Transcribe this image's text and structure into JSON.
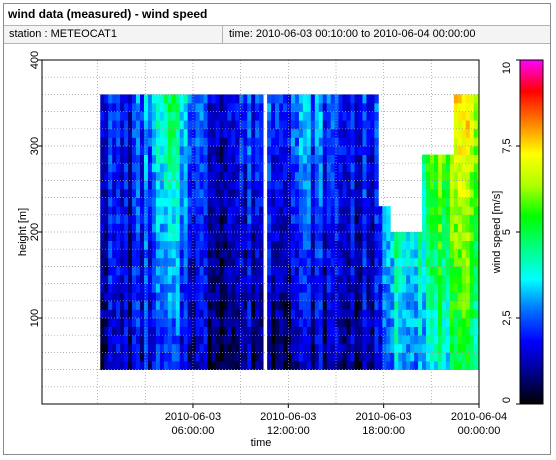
{
  "header": {
    "title": "wind data (measured) - wind speed",
    "station": "station : METEOCAT1",
    "time_range": "time: 2010-06-03 00:10:00 to 2010-06-04 00:00:00"
  },
  "chart_data": {
    "type": "heatmap",
    "title": "wind data (measured) - wind speed",
    "xlabel": "time",
    "ylabel": "height [m]",
    "colorbar_label": "wind speed [m/s]",
    "xlim_hours": [
      -3.5,
      24
    ],
    "ylim": [
      0,
      400
    ],
    "x_ticks": [
      {
        "hour": 6,
        "line1": "2010-06-03",
        "line2": "06:00:00"
      },
      {
        "hour": 12,
        "line1": "2010-06-03",
        "line2": "12:00:00"
      },
      {
        "hour": 18,
        "line1": "2010-06-03",
        "line2": "18:00:00"
      },
      {
        "hour": 24,
        "line1": "2010-06-04",
        "line2": "00:00:00"
      }
    ],
    "y_ticks": [
      100,
      200,
      300,
      400
    ],
    "colorbar_ticks": [
      "10",
      "7,5",
      "5",
      "2,5",
      "0"
    ],
    "colorbar_range": [
      0,
      10
    ],
    "colormap": [
      "#000000",
      "#00008c",
      "#0000ff",
      "#0070ff",
      "#00ffff",
      "#00ff80",
      "#00ff00",
      "#b0ff00",
      "#ffff00",
      "#ff8000",
      "#ff0000",
      "#ff00ff"
    ],
    "grid": true,
    "data_time_range_hours": [
      0.1667,
      24
    ],
    "data_height_range_m": [
      40,
      360
    ],
    "cell_hours": 0.25,
    "cell_height_m": 10,
    "column_tops_m": [
      {
        "from": 0.1,
        "to": 10.4,
        "top": 360
      },
      {
        "from": 10.4,
        "to": 10.6,
        "top": 0
      },
      {
        "from": 10.6,
        "to": 17.6,
        "top": 360
      },
      {
        "from": 17.6,
        "to": 18.3,
        "top": 230
      },
      {
        "from": 18.3,
        "to": 20.5,
        "top": 200
      },
      {
        "from": 20.5,
        "to": 22.5,
        "top": 290
      },
      {
        "from": 22.5,
        "to": 24.0,
        "top": 355
      }
    ],
    "speed_profile": [
      {
        "hour": 0.2,
        "low": 1.2,
        "high": 2.0
      },
      {
        "hour": 2.0,
        "low": 1.3,
        "high": 1.9
      },
      {
        "hour": 3.5,
        "low": 1.6,
        "high": 3.5
      },
      {
        "hour": 4.6,
        "low": 1.8,
        "high": 4.8
      },
      {
        "hour": 5.8,
        "low": 1.4,
        "high": 3.0
      },
      {
        "hour": 7.0,
        "low": 0.9,
        "high": 1.8
      },
      {
        "hour": 8.5,
        "low": 0.7,
        "high": 1.9
      },
      {
        "hour": 10.0,
        "low": 0.9,
        "high": 2.6
      },
      {
        "hour": 11.5,
        "low": 1.0,
        "high": 2.7
      },
      {
        "hour": 13.0,
        "low": 1.1,
        "high": 3.2
      },
      {
        "hour": 14.5,
        "low": 1.1,
        "high": 2.4
      },
      {
        "hour": 16.0,
        "low": 1.0,
        "high": 2.0
      },
      {
        "hour": 17.6,
        "low": 1.1,
        "high": 2.0
      },
      {
        "hour": 18.5,
        "low": 3.4,
        "high": 5.0
      },
      {
        "hour": 20.0,
        "low": 3.3,
        "high": 5.6
      },
      {
        "hour": 21.5,
        "low": 3.8,
        "high": 6.6
      },
      {
        "hour": 22.8,
        "low": 4.3,
        "high": 7.0
      },
      {
        "hour": 24.0,
        "low": 4.8,
        "high": 7.2
      }
    ]
  }
}
